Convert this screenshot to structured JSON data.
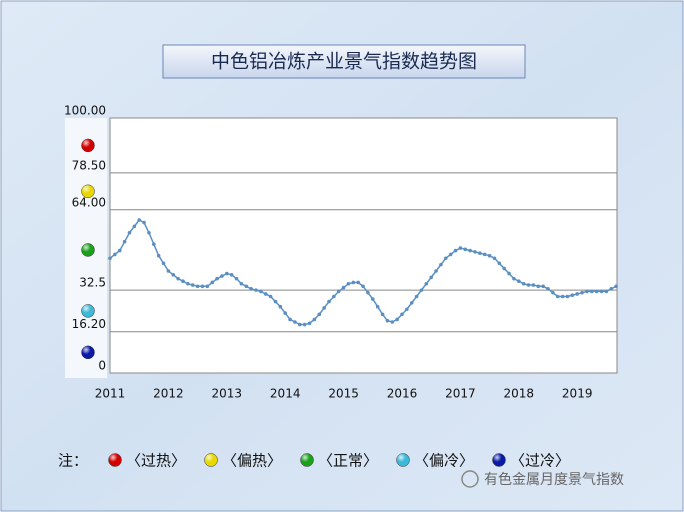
{
  "chart_data": {
    "type": "line",
    "title": "中色铝冶炼产业景气指数趋势图",
    "categories": [
      "2011",
      null,
      null,
      null,
      null,
      null,
      null,
      null,
      null,
      null,
      null,
      null,
      "2012",
      null,
      null,
      null,
      null,
      null,
      null,
      null,
      null,
      null,
      null,
      null,
      "2013",
      null,
      null,
      null,
      null,
      null,
      null,
      null,
      null,
      null,
      null,
      null,
      "2014",
      null,
      null,
      null,
      null,
      null,
      null,
      null,
      null,
      null,
      null,
      null,
      "2015",
      null,
      null,
      null,
      null,
      null,
      null,
      null,
      null,
      null,
      null,
      null,
      "2016",
      null,
      null,
      null,
      null,
      null,
      null,
      null,
      null,
      null,
      null,
      null,
      "2017",
      null,
      null,
      null,
      null,
      null,
      null,
      null,
      null,
      null,
      null,
      null,
      "2018",
      null,
      null,
      null,
      null,
      null,
      null,
      null,
      null,
      null,
      null,
      null,
      "2019",
      null,
      null,
      null,
      null,
      null,
      null,
      null,
      null
    ],
    "series": [
      {
        "color": "#5b8fc4",
        "values": [
          45,
          46.5,
          48,
          51.5,
          55,
          57.5,
          60,
          59,
          55,
          50.5,
          46,
          43,
          40,
          38.5,
          37,
          36,
          35,
          34.5,
          34,
          34,
          34,
          35.5,
          37,
          38,
          39,
          38.5,
          37,
          35,
          34,
          33,
          32.5,
          32,
          31,
          30,
          28,
          26,
          23.5,
          21,
          20,
          19,
          19,
          19.5,
          21,
          23,
          25.5,
          28,
          30,
          32,
          33.5,
          35,
          35.5,
          35.5,
          34,
          31.5,
          29,
          26,
          23,
          20.5,
          20,
          21,
          23,
          25,
          27.5,
          30,
          32.5,
          35,
          37.5,
          40,
          42.5,
          45,
          46.5,
          48,
          49,
          48.5,
          48,
          47.5,
          47,
          46.5,
          46,
          45,
          43,
          41,
          39,
          37,
          36,
          35,
          34.5,
          34.5,
          34,
          34,
          33,
          31.5,
          30,
          30,
          30,
          30.5,
          31,
          31.5,
          32,
          32,
          32,
          32,
          32,
          33,
          34
        ]
      }
    ],
    "ylim": [
      0,
      100
    ],
    "yticks": [
      {
        "value": 100,
        "label": "100.00"
      },
      {
        "value": 78.5,
        "label": "78.50"
      },
      {
        "value": 64,
        "label": "64.00"
      },
      32.5,
      {
        "value": 16.2,
        "label": "16.20"
      },
      0
    ],
    "grid": true,
    "legend_title": "注：",
    "legend": [
      {
        "label": "〈过热〉",
        "color": "#d40000"
      },
      {
        "label": "〈偏热〉",
        "color": "#e8d800"
      },
      {
        "label": "〈正常〉",
        "color": "#1aa01a"
      },
      {
        "label": "〈偏冷〉",
        "color": "#3cb8d8"
      },
      {
        "label": "〈过冷〉",
        "color": "#0a1aa8"
      }
    ]
  },
  "watermark": "有色金属月度景气指数"
}
